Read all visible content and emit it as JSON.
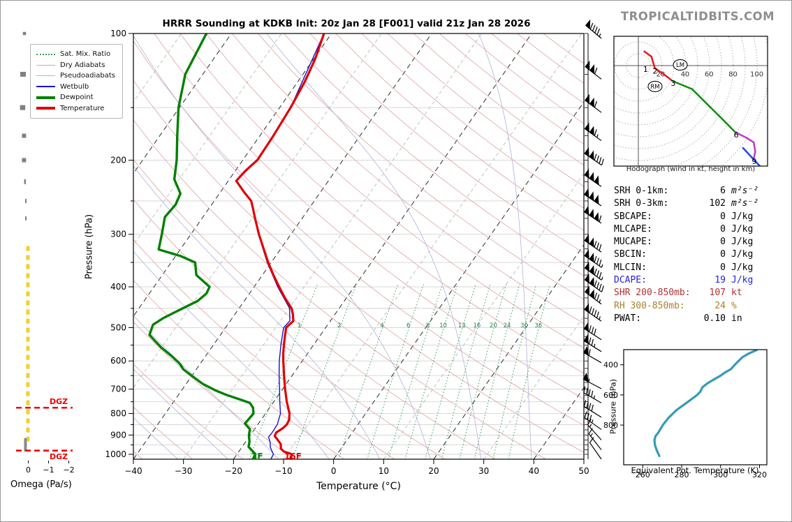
{
  "header": {
    "title": "HRRR Sounding at KDKB Init: 20z Jan 28 [F001] valid 21z Jan 28 2026",
    "brand": "TROPICALTIDBITS.COM"
  },
  "legend": {
    "items": [
      {
        "label": "Sat. Mix. Ratio",
        "color": "#2e9e5b",
        "style": "dotted",
        "weight": 2
      },
      {
        "label": "Dry Adiabats",
        "color": "#e0a1a1",
        "style": "solid",
        "weight": 1
      },
      {
        "label": "Pseudoadiabats",
        "color": "#b0b0dc",
        "style": "solid",
        "weight": 1
      },
      {
        "label": "Wetbulb",
        "color": "#1414cc",
        "style": "solid",
        "weight": 2
      },
      {
        "label": "Dewpoint",
        "color": "#008000",
        "style": "solid",
        "weight": 4
      },
      {
        "label": "Temperature",
        "color": "#e00000",
        "style": "solid",
        "weight": 4
      }
    ]
  },
  "axes": {
    "xlabel": "Temperature (°C)",
    "ylabel": "Pressure (hPa)",
    "omega_label": "Omega (Pa/s)",
    "pressure_ticks": [
      "100",
      "200",
      "300",
      "400",
      "500",
      "600",
      "700",
      "800",
      "900",
      "1000"
    ],
    "temp_ticks": [
      "−40",
      "−30",
      "−20",
      "−10",
      "0",
      "10",
      "20",
      "30",
      "40",
      "50"
    ],
    "omega_ticks": [
      "0",
      "−1",
      "−2"
    ]
  },
  "annotations": {
    "dgz_label": "DGZ",
    "surface_dewpoint_f": "3F",
    "surface_temp_f": "16F"
  },
  "stats": {
    "rows": [
      {
        "label": "SRH 0-1km:",
        "value": "6",
        "unit": "m²s⁻²",
        "color": "#000000",
        "italic": true
      },
      {
        "label": "SRH 0-3km:",
        "value": "102",
        "unit": "m²s⁻²",
        "color": "#000000",
        "italic": true
      },
      {
        "label": "SBCAPE:",
        "value": "0",
        "unit": "J/kg",
        "color": "#000000",
        "italic": false
      },
      {
        "label": "MLCAPE:",
        "value": "0",
        "unit": "J/kg",
        "color": "#000000",
        "italic": false
      },
      {
        "label": "MUCAPE:",
        "value": "0",
        "unit": "J/kg",
        "color": "#000000",
        "italic": false
      },
      {
        "label": "SBCIN:",
        "value": "0",
        "unit": "J/kg",
        "color": "#000000",
        "italic": false
      },
      {
        "label": "MLCIN:",
        "value": "0",
        "unit": "J/kg",
        "color": "#000000",
        "italic": false
      },
      {
        "label": "DCAPE:",
        "value": "19",
        "unit": "J/kg",
        "color": "#2323dd",
        "italic": false
      },
      {
        "label": "SHR 200-850mb:",
        "value": "107",
        "unit": "kt",
        "color": "#b03030",
        "italic": false
      },
      {
        "label": "RH 300-850mb:",
        "value": "24",
        "unit": "%",
        "color": "#a9822a",
        "italic": false
      },
      {
        "label": "PWAT:",
        "value": "0.10",
        "unit": "in",
        "color": "#000000",
        "italic": false
      }
    ]
  },
  "hodograph": {
    "caption": "Hodograph (wind in kt, height in km)"
  },
  "thetae": {
    "xlabel": "Equivalent Pot. Temperature (K)",
    "ylabel": "Pressure (hPa)",
    "xticks": [
      "260",
      "280",
      "300",
      "320"
    ],
    "yticks": [
      "400",
      "600",
      "800"
    ]
  },
  "chart_data": [
    {
      "type": "line",
      "name": "skew_t_sounding",
      "xlabel": "Temperature (°C)",
      "ylabel": "Pressure (hPa)",
      "xlim": [
        -40,
        50
      ],
      "ylim": [
        1050,
        100
      ],
      "grid": "on",
      "mixing_ratio_labels": [
        "1",
        "2",
        "4",
        "6",
        "8",
        "10",
        "13",
        "16",
        "20",
        "24",
        "30",
        "36"
      ],
      "dgz_levels_hpa": [
        775,
        980
      ],
      "series": [
        {
          "name": "Temperature",
          "color": "#e00000",
          "points_p_c": [
            [
              100,
              -61.5
            ],
            [
              115,
              -59.7
            ],
            [
              130,
              -58.6
            ],
            [
              150,
              -57.8
            ],
            [
              175,
              -57.3
            ],
            [
              200,
              -57.1
            ],
            [
              212,
              -58.0
            ],
            [
              224,
              -58.4
            ],
            [
              238,
              -55.3
            ],
            [
              250,
              -52.6
            ],
            [
              262,
              -51.0
            ],
            [
              275,
              -49.4
            ],
            [
              300,
              -46.4
            ],
            [
              325,
              -43.4
            ],
            [
              350,
              -40.6
            ],
            [
              375,
              -37.8
            ],
            [
              400,
              -35.0
            ],
            [
              425,
              -32.3
            ],
            [
              450,
              -29.5
            ],
            [
              465,
              -28.4
            ],
            [
              482,
              -27.4
            ],
            [
              500,
              -27.9
            ],
            [
              525,
              -26.9
            ],
            [
              550,
              -25.9
            ],
            [
              575,
              -24.9
            ],
            [
              600,
              -23.8
            ],
            [
              650,
              -21.6
            ],
            [
              700,
              -19.5
            ],
            [
              750,
              -17.4
            ],
            [
              800,
              -15.2
            ],
            [
              828,
              -14.4
            ],
            [
              850,
              -14.2
            ],
            [
              868,
              -14.5
            ],
            [
              888,
              -15.2
            ],
            [
              905,
              -15.0
            ],
            [
              922,
              -14.0
            ],
            [
              945,
              -12.7
            ],
            [
              970,
              -12.0
            ],
            [
              985,
              -11.0
            ],
            [
              1000,
              -9.0
            ],
            [
              1036,
              -8.6
            ]
          ]
        },
        {
          "name": "Dewpoint",
          "color": "#008000",
          "points_p_c": [
            [
              100,
              -85.0
            ],
            [
              125,
              -83.5
            ],
            [
              150,
              -80.2
            ],
            [
              175,
              -76.5
            ],
            [
              200,
              -73.2
            ],
            [
              222,
              -71.0
            ],
            [
              240,
              -67.8
            ],
            [
              255,
              -67.2
            ],
            [
              273,
              -67.6
            ],
            [
              300,
              -65.8
            ],
            [
              326,
              -64.3
            ],
            [
              338,
              -59.0
            ],
            [
              350,
              -55.2
            ],
            [
              375,
              -53.2
            ],
            [
              400,
              -48.9
            ],
            [
              415,
              -48.6
            ],
            [
              432,
              -49.3
            ],
            [
              455,
              -51.8
            ],
            [
              475,
              -53.8
            ],
            [
              492,
              -54.9
            ],
            [
              520,
              -54.2
            ],
            [
              540,
              -52.0
            ],
            [
              558,
              -50.0
            ],
            [
              585,
              -46.7
            ],
            [
              610,
              -44.0
            ],
            [
              628,
              -42.6
            ],
            [
              650,
              -40.1
            ],
            [
              680,
              -36.7
            ],
            [
              705,
              -33.2
            ],
            [
              722,
              -30.5
            ],
            [
              740,
              -27.2
            ],
            [
              755,
              -24.6
            ],
            [
              775,
              -23.3
            ],
            [
              800,
              -22.4
            ],
            [
              845,
              -22.7
            ],
            [
              872,
              -20.9
            ],
            [
              900,
              -20.3
            ],
            [
              932,
              -19.3
            ],
            [
              960,
              -18.7
            ],
            [
              1000,
              -16.3
            ],
            [
              1036,
              -16.1
            ]
          ]
        },
        {
          "name": "Wetbulb",
          "color": "#1414cc",
          "points_p_c": [
            [
              100,
              -61.5
            ],
            [
              150,
              -57.8
            ],
            [
              200,
              -57.1
            ],
            [
              224,
              -58.4
            ],
            [
              250,
              -52.7
            ],
            [
              300,
              -46.5
            ],
            [
              350,
              -40.8
            ],
            [
              400,
              -35.3
            ],
            [
              450,
              -29.9
            ],
            [
              482,
              -28.1
            ],
            [
              500,
              -28.4
            ],
            [
              550,
              -26.5
            ],
            [
              600,
              -24.6
            ],
            [
              650,
              -22.6
            ],
            [
              700,
              -20.6
            ],
            [
              750,
              -18.8
            ],
            [
              800,
              -17.0
            ],
            [
              850,
              -16.1
            ],
            [
              885,
              -16.0
            ],
            [
              910,
              -16.1
            ],
            [
              935,
              -15.1
            ],
            [
              965,
              -14.2
            ],
            [
              1000,
              -12.7
            ],
            [
              1036,
              -12.5
            ]
          ]
        }
      ]
    },
    {
      "type": "barbs",
      "name": "wind_profile",
      "units": "kt",
      "levels_p_kt_dir": [
        [
          100,
          95,
          310
        ],
        [
          125,
          110,
          308
        ],
        [
          150,
          110,
          307
        ],
        [
          175,
          115,
          306
        ],
        [
          200,
          140,
          305
        ],
        [
          225,
          150,
          305
        ],
        [
          250,
          150,
          304
        ],
        [
          275,
          160,
          304
        ],
        [
          322,
          130,
          305
        ],
        [
          350,
          135,
          305
        ],
        [
          375,
          135,
          306
        ],
        [
          400,
          140,
          306
        ],
        [
          428,
          125,
          307
        ],
        [
          470,
          95,
          305
        ],
        [
          520,
          80,
          303
        ],
        [
          555,
          75,
          302
        ],
        [
          590,
          60,
          300
        ],
        [
          680,
          55,
          298
        ],
        [
          735,
          45,
          300
        ],
        [
          795,
          40,
          302
        ],
        [
          850,
          35,
          305
        ],
        [
          900,
          15,
          318
        ],
        [
          950,
          15,
          322
        ],
        [
          1000,
          10,
          325
        ]
      ]
    },
    {
      "type": "line",
      "name": "omega_profile",
      "units": "Pa/s",
      "ticks": [
        0,
        -1,
        -2
      ],
      "squares_p_w_size": [
        [
          100,
          0.19,
          4.5,
          4.5
        ],
        [
          125,
          0.26,
          8,
          7
        ],
        [
          150,
          0.28,
          7.5,
          7
        ],
        [
          175,
          0.21,
          6,
          6
        ],
        [
          200,
          0.21,
          6,
          6
        ],
        [
          225,
          0.16,
          2.5,
          7
        ],
        [
          250,
          0.12,
          2,
          6
        ],
        [
          275,
          0.12,
          2,
          6
        ]
      ],
      "dashed_column": {
        "p_top": 320,
        "p_bottom": 950,
        "w": 0.02,
        "color": "#f2cf2d"
      },
      "surface_bar": {
        "p_top": 915,
        "p_bottom": 985,
        "w": 0.14,
        "color": "#8a8a8a"
      }
    },
    {
      "type": "line",
      "name": "hodograph",
      "units": "kt",
      "rings_kt": [
        10,
        20,
        30,
        40,
        50,
        60,
        70,
        80,
        90,
        100,
        110
      ],
      "ring_labels": [
        "20",
        "40",
        "60",
        "80",
        "100"
      ],
      "segments": [
        {
          "layer": "0-3km",
          "color": "#e02020",
          "points_uv": [
            [
              5.1,
              11.9
            ],
            [
              11.0,
              7.6
            ],
            [
              13.9,
              -2.2
            ],
            [
              21.8,
              -7.6
            ],
            [
              28.6,
              -12.9
            ]
          ]
        },
        {
          "layer": "3-6km",
          "color": "#149014",
          "points_uv": [
            [
              28.6,
              -12.9
            ],
            [
              45.3,
              -19.8
            ],
            [
              59.0,
              -33.5
            ],
            [
              72.8,
              -47.2
            ],
            [
              81.6,
              -56.1
            ]
          ]
        },
        {
          "layer": "6-9km",
          "color": "#c040c0",
          "points_uv": [
            [
              81.6,
              -56.1
            ],
            [
              90.6,
              -60.6
            ],
            [
              97.2,
              -64.7
            ],
            [
              98.5,
              -72.4
            ],
            [
              97.2,
              -78.6
            ]
          ]
        },
        {
          "layer": "9-12km",
          "color": "#2050e0",
          "points_uv": [
            [
              88.2,
              -69.4
            ],
            [
              102.9,
              -85.3
            ]
          ]
        }
      ],
      "height_labels": [
        {
          "text": "1",
          "u": 6.1,
          "v": -2.9
        },
        {
          "text": "2",
          "u": 14.1,
          "v": -4.4
        },
        {
          "text": "3",
          "u": 29.4,
          "v": -14.7
        },
        {
          "text": "6",
          "u": 82.4,
          "v": -58.2
        },
        {
          "text": "9",
          "u": 97.6,
          "v": -80.6
        }
      ],
      "storm_motion_markers": [
        {
          "text": "LM",
          "u": 35.3,
          "v": 0.6
        },
        {
          "text": "RM",
          "u": 14.1,
          "v": -17.6
        }
      ]
    },
    {
      "type": "line",
      "name": "theta_e_profile",
      "xlabel": "Equivalent Pot. Temperature (K)",
      "ylabel": "Pressure (hPa)",
      "xlim": [
        250,
        325
      ],
      "ylim": [
        1063,
        300
      ],
      "color": "#3699b8",
      "points_k_p": [
        [
          268.5,
          1005
        ],
        [
          267.3,
          970
        ],
        [
          266.3,
          935
        ],
        [
          266.0,
          900
        ],
        [
          266.6,
          872
        ],
        [
          268.0,
          850
        ],
        [
          270.3,
          800
        ],
        [
          273.4,
          750
        ],
        [
          277.4,
          700
        ],
        [
          282.8,
          650
        ],
        [
          288.0,
          600
        ],
        [
          289.6,
          578
        ],
        [
          290.6,
          550
        ],
        [
          293.0,
          525
        ],
        [
          296.2,
          500
        ],
        [
          299.6,
          475
        ],
        [
          302.4,
          450
        ],
        [
          305.4,
          428
        ],
        [
          307.3,
          400
        ],
        [
          309.2,
          375
        ],
        [
          311.2,
          350
        ],
        [
          314.5,
          325
        ],
        [
          318.5,
          303
        ]
      ]
    }
  ]
}
